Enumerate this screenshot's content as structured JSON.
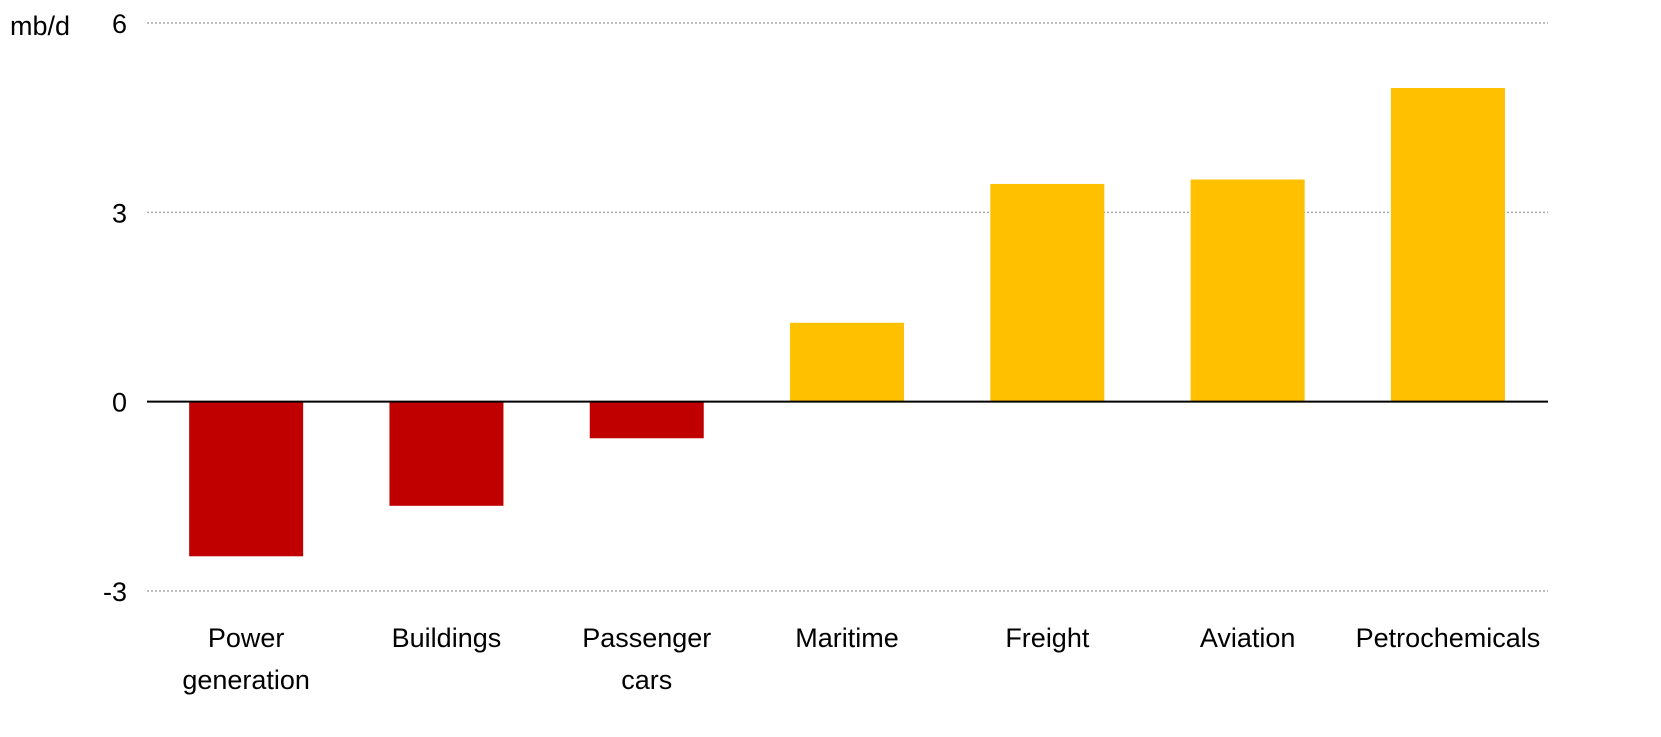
{
  "chart_data": {
    "type": "bar",
    "unit_label": "mb/d",
    "categories": [
      [
        "Power",
        "generation"
      ],
      [
        "Buildings"
      ],
      [
        "Passenger",
        "cars"
      ],
      [
        "Maritime"
      ],
      [
        "Freight"
      ],
      [
        "Aviation"
      ],
      [
        "Petrochemicals"
      ]
    ],
    "values": [
      -2.45,
      -1.65,
      -0.58,
      1.25,
      3.45,
      3.52,
      4.97
    ],
    "ylim": [
      -3,
      6
    ],
    "yticks": [
      6,
      3,
      0,
      -3
    ],
    "grid": true,
    "colors": {
      "negative": "#c00000",
      "positive": "#ffc000",
      "grid": "#a6a6a6",
      "axis": "#000000"
    }
  }
}
